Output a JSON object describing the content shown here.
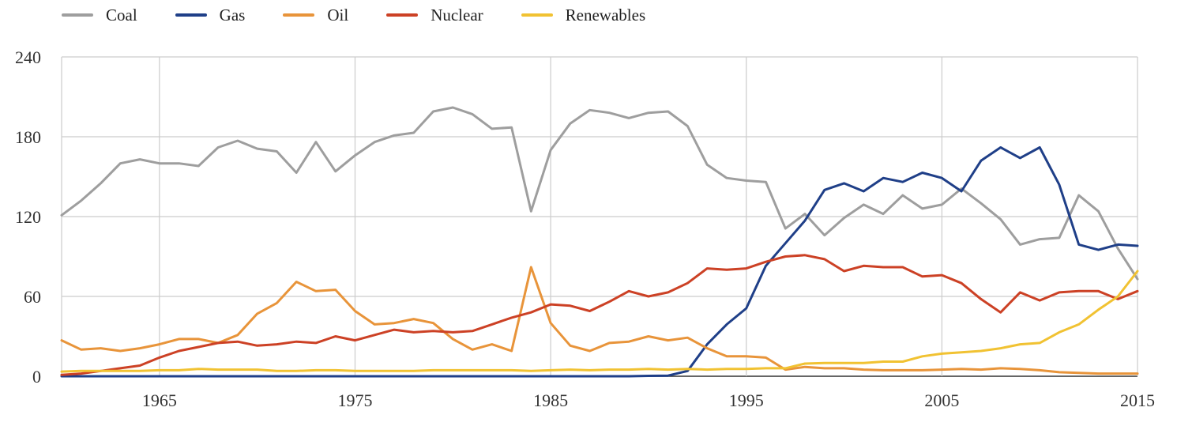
{
  "chart_data": {
    "type": "line",
    "title": "",
    "xlabel": "",
    "ylabel": "",
    "xlim": [
      1960,
      2015
    ],
    "ylim": [
      0,
      240
    ],
    "y_ticks": [
      0,
      60,
      120,
      180,
      240
    ],
    "x_ticks": [
      1965,
      1975,
      1985,
      1995,
      2005,
      2015
    ],
    "grid": true,
    "legend_position": "top-left",
    "x": [
      1960,
      1961,
      1962,
      1963,
      1964,
      1965,
      1966,
      1967,
      1968,
      1969,
      1970,
      1971,
      1972,
      1973,
      1974,
      1975,
      1976,
      1977,
      1978,
      1979,
      1980,
      1981,
      1982,
      1983,
      1984,
      1985,
      1986,
      1987,
      1988,
      1989,
      1990,
      1991,
      1992,
      1993,
      1994,
      1995,
      1996,
      1997,
      1998,
      1999,
      2000,
      2001,
      2002,
      2003,
      2004,
      2005,
      2006,
      2007,
      2008,
      2009,
      2010,
      2011,
      2012,
      2013,
      2014,
      2015
    ],
    "series": [
      {
        "name": "Coal",
        "color": "#9e9e9e",
        "values": [
          121,
          132,
          145,
          160,
          163,
          160,
          160,
          158,
          172,
          177,
          171,
          169,
          153,
          176,
          154,
          166,
          176,
          181,
          183,
          199,
          202,
          197,
          186,
          187,
          124,
          170,
          190,
          200,
          198,
          194,
          198,
          199,
          188,
          159,
          149,
          147,
          146,
          111,
          122,
          106,
          119,
          129,
          122,
          136,
          126,
          129,
          141,
          130,
          118,
          99,
          103,
          104,
          136,
          124,
          96,
          73
        ]
      },
      {
        "name": "Gas",
        "color": "#1f3f88",
        "values": [
          0,
          0,
          0,
          0,
          0,
          0,
          0,
          0,
          0,
          0,
          0,
          0,
          0,
          0,
          0,
          0,
          0,
          0,
          0,
          0,
          0,
          0,
          0,
          0,
          0,
          0,
          0,
          0,
          0,
          0,
          0.3,
          0.5,
          4,
          24,
          39,
          51,
          83,
          100,
          117,
          140,
          145,
          139,
          149,
          146,
          153,
          149,
          139,
          162,
          172,
          164,
          172,
          144,
          99,
          95,
          99,
          98
        ]
      },
      {
        "name": "Oil",
        "color": "#e8943a",
        "values": [
          27,
          20,
          21,
          19,
          21,
          24,
          28,
          28,
          25,
          31,
          47,
          55,
          71,
          64,
          65,
          49,
          39,
          40,
          43,
          40,
          28,
          20,
          24,
          19,
          82,
          40,
          23,
          19,
          25,
          26,
          30,
          27,
          29,
          21,
          15,
          15,
          14,
          5,
          7,
          6,
          6,
          5,
          4.5,
          4.5,
          4.5,
          5,
          5.5,
          5,
          6,
          5.5,
          4.5,
          3,
          2.5,
          2,
          2,
          2
        ]
      },
      {
        "name": "Nuclear",
        "color": "#cc4125",
        "values": [
          1,
          2,
          4,
          6,
          8,
          14,
          19,
          22,
          25,
          26,
          23,
          24,
          26,
          25,
          30,
          27,
          31,
          35,
          33,
          34,
          33,
          34,
          39,
          44,
          48,
          54,
          53,
          49,
          56,
          64,
          60,
          63,
          70,
          81,
          80,
          81,
          86,
          90,
          91,
          88,
          79,
          83,
          82,
          82,
          75,
          76,
          70,
          58,
          48,
          63,
          57,
          63,
          64,
          64,
          58,
          64
        ]
      },
      {
        "name": "Renewables",
        "color": "#f1c232",
        "values": [
          3.5,
          4,
          4,
          4,
          4,
          4.5,
          4.5,
          5.5,
          5,
          5,
          5,
          4,
          4,
          4.5,
          4.5,
          4,
          4,
          4,
          4,
          4.5,
          4.5,
          4.5,
          4.5,
          4.5,
          4,
          4.5,
          5,
          4.5,
          5,
          5,
          5.5,
          5,
          5.5,
          5,
          5.5,
          5.5,
          6,
          6,
          9.5,
          10,
          10,
          10,
          11,
          11,
          15,
          17,
          18,
          19,
          21,
          24,
          25,
          33,
          39,
          50,
          60,
          79
        ]
      }
    ]
  }
}
